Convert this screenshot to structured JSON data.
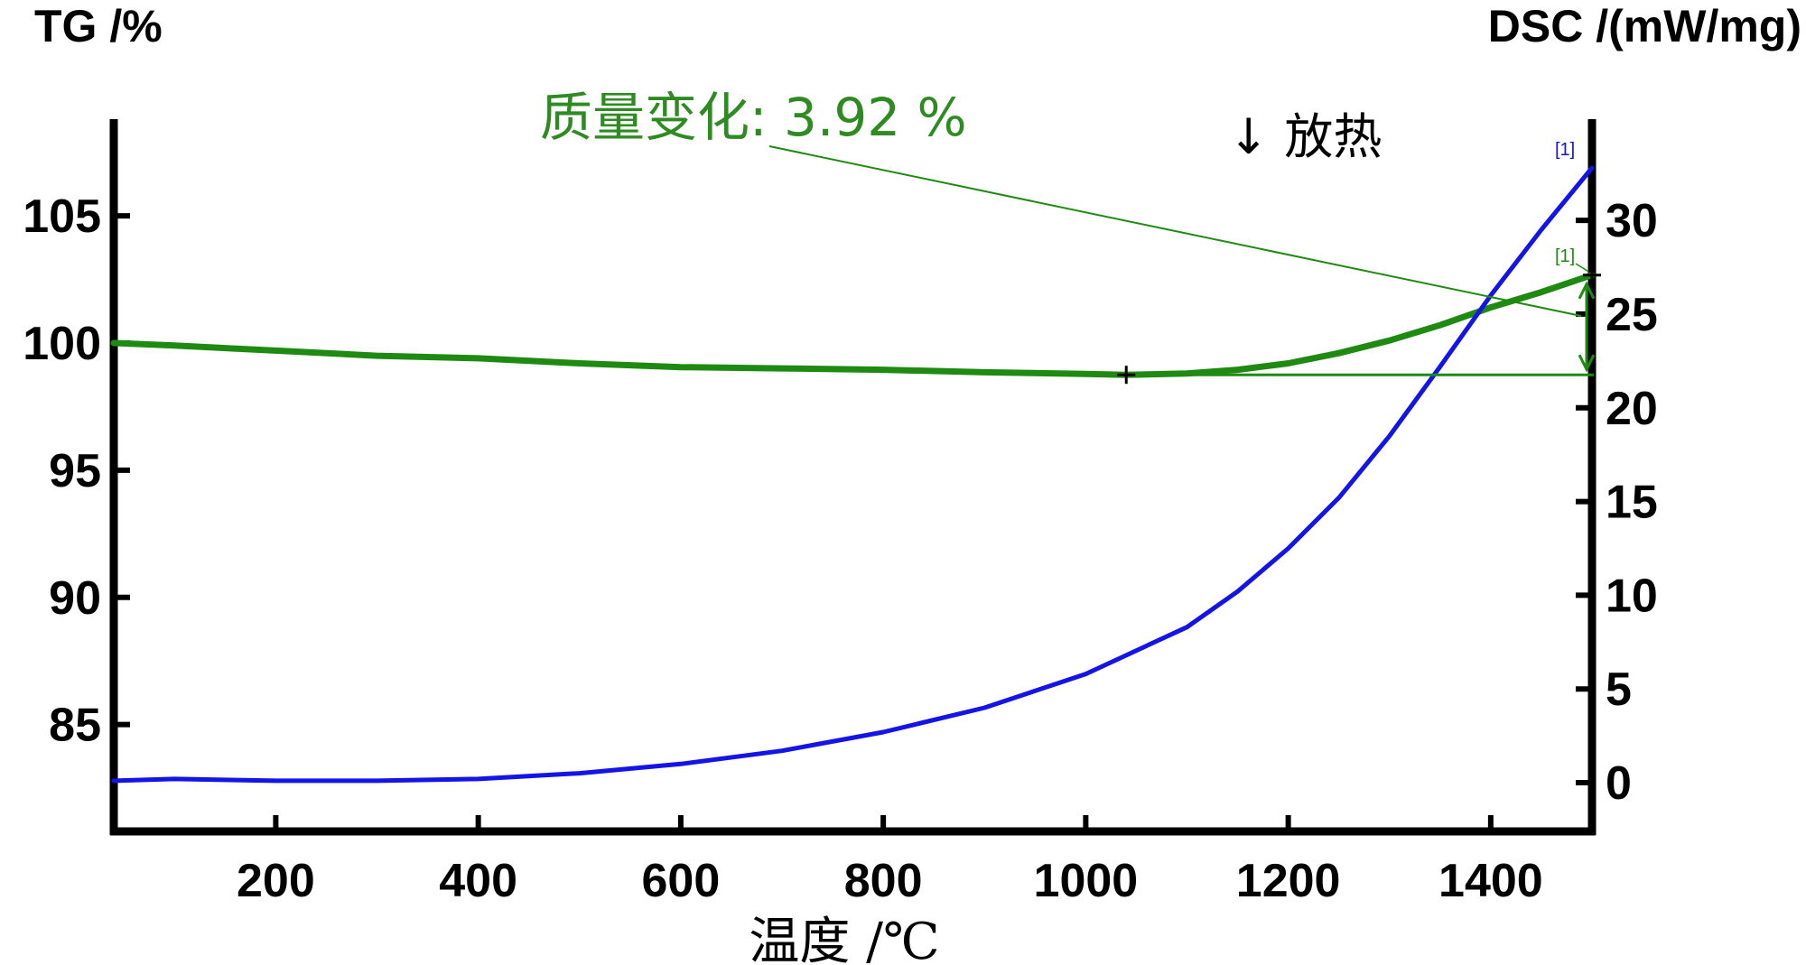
{
  "chart_data": {
    "type": "line",
    "title": "",
    "xlabel": "温度 /℃",
    "ylabel_left": "TG /%",
    "ylabel_right": "DSC /(mW/mg)",
    "xlim": [
      40,
      1500
    ],
    "ylim_left": [
      80.8,
      108.8
    ],
    "ylim_right": [
      -2.6,
      35.4
    ],
    "x_ticks": [
      200,
      400,
      600,
      800,
      1000,
      1200,
      1400
    ],
    "y_left_ticks": [
      85,
      90,
      95,
      100,
      105
    ],
    "y_right_ticks": [
      0,
      5,
      10,
      15,
      20,
      25,
      30
    ],
    "grid": false,
    "series": [
      {
        "name": "TG",
        "axis": "left",
        "color": "#1f8a12",
        "x": [
          40,
          100,
          200,
          300,
          400,
          500,
          600,
          700,
          800,
          900,
          1000,
          1040,
          1100,
          1150,
          1200,
          1250,
          1300,
          1350,
          1400,
          1450,
          1500
        ],
        "y": [
          100.0,
          99.9,
          99.7,
          99.5,
          99.4,
          99.2,
          99.05,
          99.0,
          98.95,
          98.85,
          98.78,
          98.75,
          98.8,
          98.95,
          99.2,
          99.6,
          100.1,
          100.7,
          101.4,
          102.0,
          102.67
        ]
      },
      {
        "name": "DSC",
        "axis": "right",
        "color": "#1414e6",
        "x": [
          40,
          100,
          200,
          300,
          400,
          500,
          600,
          700,
          800,
          900,
          1000,
          1100,
          1150,
          1200,
          1250,
          1300,
          1350,
          1400,
          1450,
          1500
        ],
        "y": [
          0.1,
          0.2,
          0.1,
          0.1,
          0.2,
          0.5,
          1.0,
          1.7,
          2.7,
          4.0,
          5.8,
          8.3,
          10.2,
          12.5,
          15.2,
          18.5,
          22.2,
          26.0,
          29.5,
          32.8
        ]
      }
    ],
    "annotations": {
      "mass_change": "质量变化: 3.92 %",
      "exo": "↓ 放热",
      "marker_dsc": "[1]",
      "marker_tg": "[1]"
    }
  }
}
